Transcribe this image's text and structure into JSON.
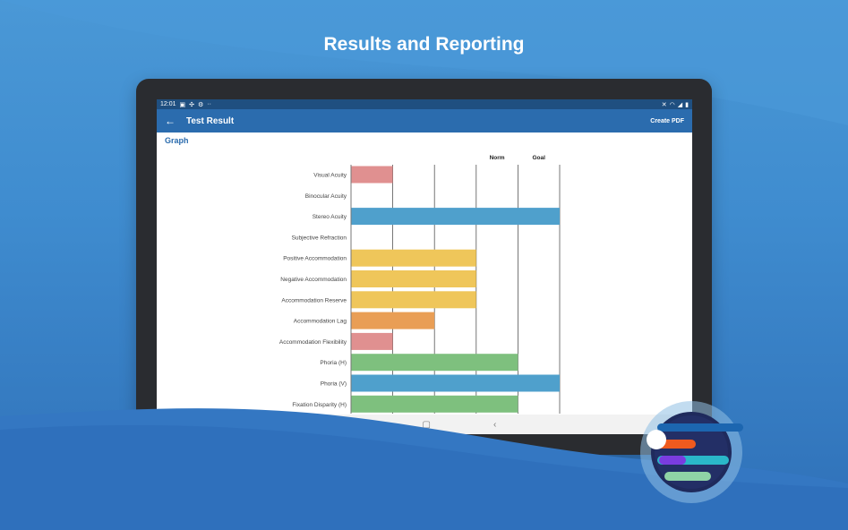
{
  "headline": "Results and Reporting",
  "status_bar": {
    "time": "12:01",
    "left_icons": [
      "image-icon",
      "vibrate-icon",
      "settings-icon",
      "more-icon"
    ],
    "right_icons": [
      "mute-icon",
      "wifi-icon",
      "signal-icon",
      "battery-icon"
    ]
  },
  "app_bar": {
    "title": "Test Result",
    "back_icon": "arrow-left-icon",
    "action_label": "Create PDF"
  },
  "section": {
    "title": "Graph"
  },
  "nav_bar": {
    "icons": [
      "recents-icon",
      "home-icon",
      "back-icon"
    ]
  },
  "colors": {
    "primary": "#2b6cae",
    "status": "#1f4f80",
    "pink": "#e09090",
    "blue": "#4fa0cc",
    "yellow": "#efc65a",
    "orange": "#e99e55",
    "green": "#7ec07e"
  },
  "chart_data": {
    "type": "bar",
    "orientation": "horizontal",
    "column_labels": [
      "Norm",
      "Goal"
    ],
    "gridlines": 5,
    "categories": [
      "Visual Acuity",
      "Binocular Acuity",
      "Stereo Acuity",
      "Subjective Refraction",
      "Positive Accommodation",
      "Negative Accommodation",
      "Accommodation Reserve",
      "Accommodation Lag",
      "Accommodation Flexibility",
      "Phoria (H)",
      "Phoria (V)",
      "Fixation Disparity (H)"
    ],
    "values": [
      1,
      0,
      5,
      0,
      3,
      3,
      3,
      2,
      1,
      4,
      5,
      4
    ],
    "bar_colors": [
      "pink",
      "none",
      "blue",
      "none",
      "yellow",
      "yellow",
      "yellow",
      "orange",
      "pink",
      "green",
      "blue",
      "green"
    ],
    "xlim": [
      0,
      5
    ]
  }
}
